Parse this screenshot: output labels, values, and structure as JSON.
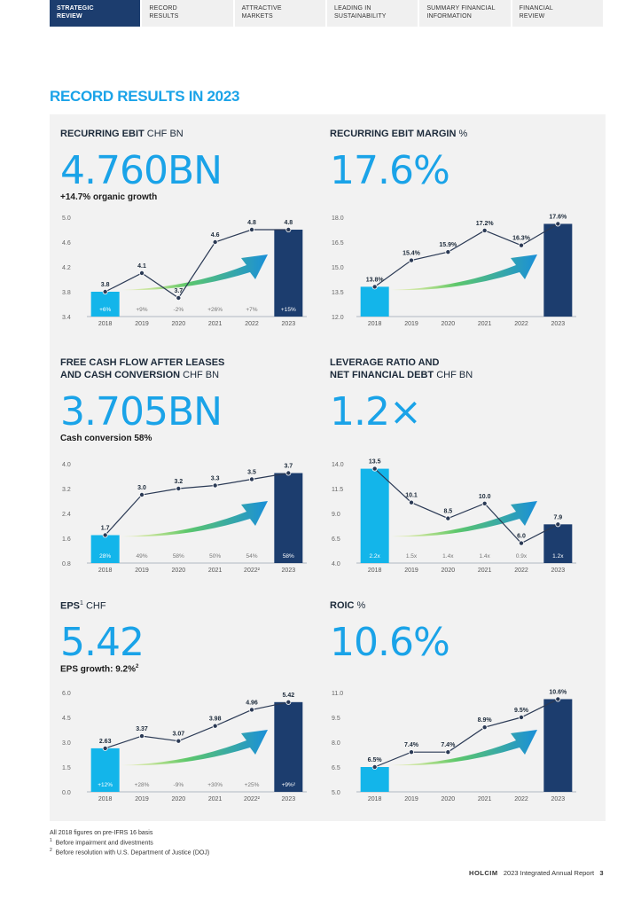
{
  "nav": [
    {
      "l1": "STRATEGIC",
      "l2": "REVIEW",
      "active": true
    },
    {
      "l1": "RECORD",
      "l2": "RESULTS",
      "active": false
    },
    {
      "l1": "ATTRACTIVE",
      "l2": "MARKETS",
      "active": false
    },
    {
      "l1": "LEADING IN",
      "l2": "SUSTAINABILITY",
      "active": false
    },
    {
      "l1": "SUMMARY FINANCIAL",
      "l2": "INFORMATION",
      "active": false
    },
    {
      "l1": "FINANCIAL",
      "l2": "REVIEW",
      "active": false
    }
  ],
  "page_title": "RECORD RESULTS IN 2023",
  "kpis": {
    "ebit": {
      "title_bold": "RECURRING EBIT",
      "title_rest": " CHF BN",
      "value": "4.760BN",
      "sub": "+14.7% organic growth"
    },
    "margin": {
      "title_bold": "RECURRING EBIT MARGIN",
      "title_rest": " %",
      "value": "17.6%"
    },
    "fcf": {
      "title_bold1": "FREE CASH FLOW AFTER LEASES",
      "title_bold2": "AND CASH CONVERSION",
      "title_rest": " CHF BN",
      "value": "3.705BN",
      "sub": "Cash conversion 58%"
    },
    "leverage": {
      "title_bold1": "LEVERAGE RATIO AND",
      "title_bold2": "NET FINANCIAL DEBT",
      "title_rest": " CHF BN",
      "value": "1.2×"
    },
    "eps": {
      "title_bold": "EPS",
      "title_sup": "1",
      "title_rest": " CHF",
      "value": "5.42",
      "sub": "EPS growth: 9.2%",
      "sub_sup": "2"
    },
    "roic": {
      "title_bold": "ROIC",
      "title_rest": " %",
      "value": "10.6%"
    }
  },
  "chart_data": [
    {
      "type": "bar",
      "id": "ebit",
      "categories": [
        "2018",
        "2019",
        "2020",
        "2021",
        "2022",
        "2023"
      ],
      "x_labels": [
        "2018",
        "2019",
        "2020",
        "2021",
        "2022",
        "2023"
      ],
      "bars": [
        {
          "index": 0,
          "value": 3.8
        },
        {
          "index": 5,
          "value": 4.8
        }
      ],
      "line": [
        3.8,
        4.1,
        3.7,
        4.6,
        4.8,
        4.8
      ],
      "line_labels": [
        "3.8",
        "4.1",
        "3.7",
        "4.6",
        "4.8",
        "4.8"
      ],
      "bottom_labels": [
        "+6%",
        "+9%",
        "-2%",
        "+26%",
        "+7%",
        "+15%"
      ],
      "yticks": [
        "5.0",
        "4.6",
        "4.2",
        "3.8",
        "3.4"
      ],
      "ylim": [
        3.4,
        5.0
      ]
    },
    {
      "type": "bar",
      "id": "margin",
      "categories": [
        "2018",
        "2019",
        "2020",
        "2021",
        "2022",
        "2023"
      ],
      "x_labels": [
        "2018",
        "2019",
        "2020",
        "2021",
        "2022",
        "2023"
      ],
      "bars": [
        {
          "index": 0,
          "value": 13.8
        },
        {
          "index": 5,
          "value": 17.6
        }
      ],
      "line": [
        13.8,
        15.4,
        15.9,
        17.2,
        16.3,
        17.6
      ],
      "line_labels": [
        "13.8%",
        "15.4%",
        "15.9%",
        "17.2%",
        "16.3%",
        "17.6%"
      ],
      "bottom_labels": [],
      "yticks": [
        "18.0",
        "16.5",
        "15.0",
        "13.5",
        "12.0"
      ],
      "ylim": [
        12.0,
        18.0
      ]
    },
    {
      "type": "bar",
      "id": "fcf",
      "categories": [
        "2018",
        "2019",
        "2020",
        "2021",
        "2022",
        "2023"
      ],
      "x_labels": [
        "2018",
        "2019",
        "2020",
        "2021",
        "2022²",
        "2023"
      ],
      "bars": [
        {
          "index": 0,
          "value": 1.7
        },
        {
          "index": 5,
          "value": 3.7
        }
      ],
      "line": [
        1.7,
        3.0,
        3.2,
        3.3,
        3.5,
        3.7
      ],
      "line_labels": [
        "1.7",
        "3.0",
        "3.2",
        "3.3",
        "3.5",
        "3.7"
      ],
      "bottom_labels": [
        "28%",
        "49%",
        "58%",
        "50%",
        "54%",
        "58%"
      ],
      "yticks": [
        "4.0",
        "3.2",
        "2.4",
        "1.6",
        "0.8"
      ],
      "ylim": [
        0.8,
        4.0
      ]
    },
    {
      "type": "bar",
      "id": "leverage",
      "categories": [
        "2018",
        "2019",
        "2020",
        "2021",
        "2022",
        "2023"
      ],
      "x_labels": [
        "2018",
        "2019",
        "2020",
        "2021",
        "2022",
        "2023"
      ],
      "bars": [
        {
          "index": 0,
          "value": 13.5
        },
        {
          "index": 5,
          "value": 7.9
        }
      ],
      "line": [
        13.5,
        10.1,
        8.5,
        10.0,
        6.0,
        7.9
      ],
      "line_labels": [
        "13.5",
        "10.1",
        "8.5",
        "10.0",
        "6.0",
        "7.9"
      ],
      "bottom_labels": [
        "2.2x",
        "1.5x",
        "1.4x",
        "1.4x",
        "0.9x",
        "1.2x"
      ],
      "yticks": [
        "14.0",
        "11.5",
        "9.0",
        "6.5",
        "4.0"
      ],
      "ylim": [
        4.0,
        14.0
      ]
    },
    {
      "type": "bar",
      "id": "eps",
      "categories": [
        "2018",
        "2019",
        "2020",
        "2021",
        "2022",
        "2023"
      ],
      "x_labels": [
        "2018",
        "2019",
        "2020",
        "2021",
        "2022²",
        "2023"
      ],
      "bars": [
        {
          "index": 0,
          "value": 2.63
        },
        {
          "index": 5,
          "value": 5.42
        }
      ],
      "line": [
        2.63,
        3.37,
        3.07,
        3.98,
        4.96,
        5.42
      ],
      "line_labels": [
        "2.63",
        "3.37",
        "3.07",
        "3.98",
        "4.96",
        "5.42"
      ],
      "bottom_labels": [
        "+12%",
        "+28%",
        "-9%",
        "+30%",
        "+25%",
        "+9%²"
      ],
      "yticks": [
        "6.0",
        "4.5",
        "3.0",
        "1.5",
        "0.0"
      ],
      "ylim": [
        0.0,
        6.0
      ]
    },
    {
      "type": "bar",
      "id": "roic",
      "categories": [
        "2018",
        "2019",
        "2020",
        "2021",
        "2022",
        "2023"
      ],
      "x_labels": [
        "2018",
        "2019",
        "2020",
        "2021",
        "2022",
        "2023"
      ],
      "bars": [
        {
          "index": 0,
          "value": 6.5
        },
        {
          "index": 5,
          "value": 10.6
        }
      ],
      "line": [
        6.5,
        7.4,
        7.4,
        8.9,
        9.5,
        10.6
      ],
      "line_labels": [
        "6.5%",
        "7.4%",
        "7.4%",
        "8.9%",
        "9.5%",
        "10.6%"
      ],
      "bottom_labels": [],
      "yticks": [
        "11.0",
        "9.5",
        "8.0",
        "6.5",
        "5.0"
      ],
      "ylim": [
        5.0,
        11.0
      ]
    }
  ],
  "footnotes": {
    "note0": "All 2018 figures on pre-IFRS 16 basis",
    "note1_num": "1",
    "note1": "Before impairment and divestments",
    "note2_num": "2",
    "note2": "Before resolution with U.S. Department of Justice (DOJ)"
  },
  "footer": {
    "brand": "HOLCIM",
    "report": "2023 Integrated Annual Report",
    "page": "3"
  },
  "colors": {
    "accent": "#1aa3e8",
    "navy": "#1c3d6e",
    "bar_light": "#13b5ea",
    "bar_dark": "#1c3d6e",
    "line": "#2b3a55"
  }
}
